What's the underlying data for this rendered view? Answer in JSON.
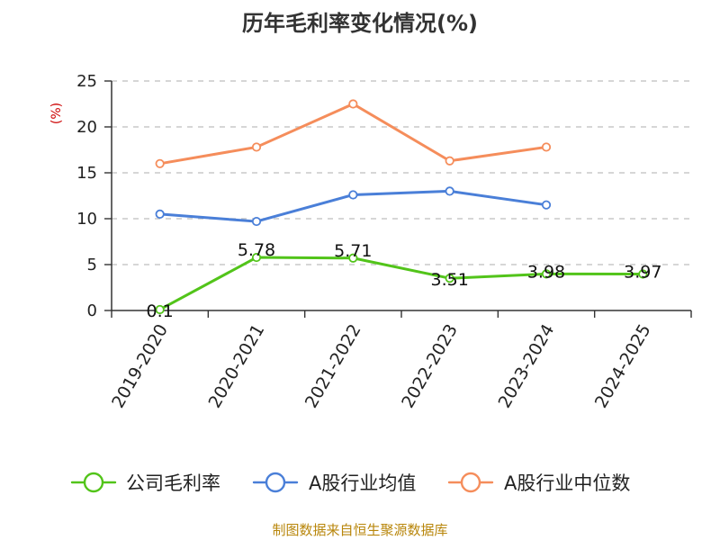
{
  "chart_data": {
    "type": "line",
    "title": "历年毛利率变化情况(%)",
    "ylabel": "(%)",
    "categories": [
      "2019-2020",
      "2020-2021",
      "2021-2022",
      "2022-2023",
      "2023-2024",
      "2024-2025"
    ],
    "ylim": [
      0,
      25
    ],
    "yticks": [
      0,
      5,
      10,
      15,
      20,
      25
    ],
    "grid": true,
    "legend_position": "bottom",
    "series": [
      {
        "name": "公司毛利率",
        "values": [
          0.1,
          5.78,
          5.71,
          3.51,
          3.98,
          3.97
        ],
        "labels": [
          "0.1",
          "5.78",
          "5.71",
          "3.51",
          "3.98",
          "3.97"
        ],
        "color": "#52c41a"
      },
      {
        "name": "A股行业均值",
        "values": [
          10.5,
          9.7,
          12.6,
          13.0,
          11.5,
          null
        ],
        "color": "#4a7fd8"
      },
      {
        "name": "A股行业中位数",
        "values": [
          16.0,
          17.8,
          22.5,
          16.3,
          17.8,
          null
        ],
        "color": "#f58d5b"
      }
    ]
  },
  "footer": {
    "source": "制图数据来自恒生聚源数据库"
  }
}
